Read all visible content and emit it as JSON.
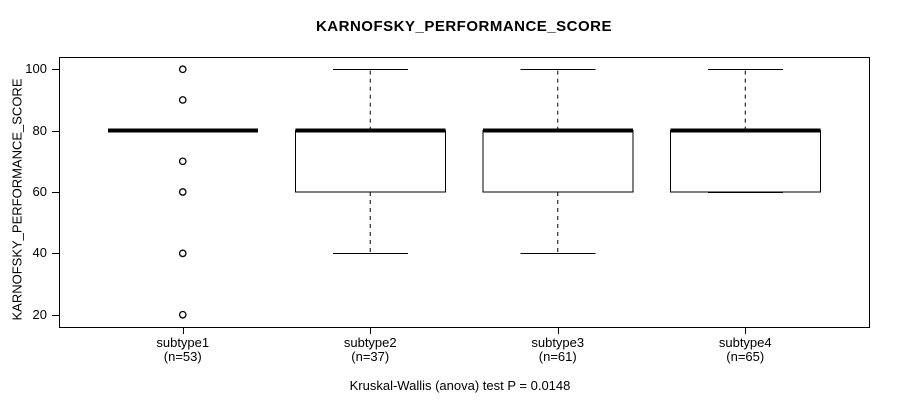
{
  "chart_data": {
    "type": "boxplot",
    "title": "KARNOFSKY_PERFORMANCE_SCORE",
    "ylabel": "KARNOFSKY_PERFORMANCE_SCORE",
    "caption": "Kruskal-Wallis (anova) test P = 0.0148",
    "ylim": [
      16,
      104
    ],
    "yticks": [
      20,
      40,
      60,
      80,
      100
    ],
    "grid": false,
    "colors": {
      "stroke": "#000000",
      "background": "#ffffff"
    },
    "groups": [
      {
        "label": "subtype1",
        "n_label": "(n=53)",
        "q1": 80,
        "median": 80,
        "q3": 80,
        "whisker_low": 80,
        "whisker_high": 80,
        "outliers": [
          100,
          90,
          70,
          60,
          40,
          20
        ]
      },
      {
        "label": "subtype2",
        "n_label": "(n=37)",
        "q1": 60,
        "median": 80,
        "q3": 80,
        "whisker_low": 40,
        "whisker_high": 100,
        "outliers": []
      },
      {
        "label": "subtype3",
        "n_label": "(n=61)",
        "q1": 60,
        "median": 80,
        "q3": 80,
        "whisker_low": 40,
        "whisker_high": 100,
        "outliers": []
      },
      {
        "label": "subtype4",
        "n_label": "(n=65)",
        "q1": 60,
        "median": 80,
        "q3": 80,
        "whisker_low": 60,
        "whisker_high": 100,
        "outliers": []
      }
    ]
  }
}
